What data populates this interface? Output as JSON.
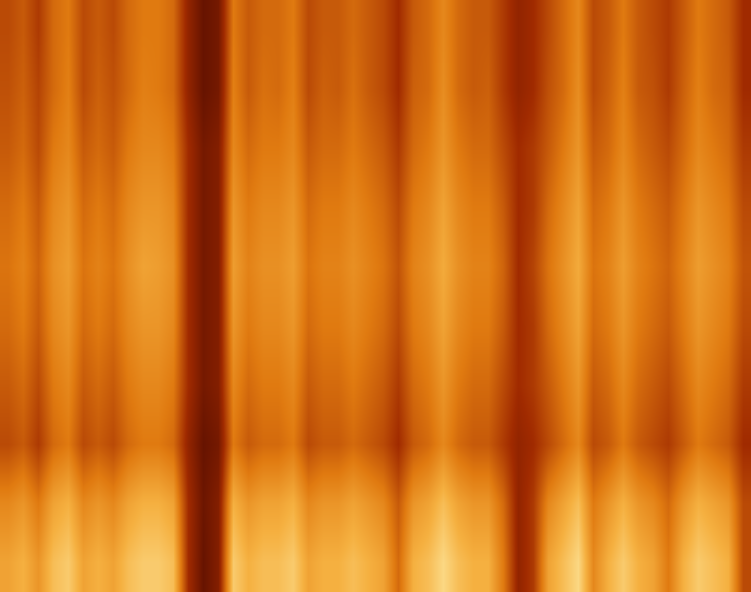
{
  "chart_data": {
    "type": "heatmap",
    "tick_labels": false,
    "zlim": [
      0,
      1
    ],
    "cells": [
      [
        0.4,
        0.45,
        0.35,
        0.5,
        0.55,
        0.4,
        0.45,
        0.4,
        0.5,
        0.55,
        0.55,
        0.5,
        0.25,
        0.1,
        0.15,
        0.55,
        0.45,
        0.5,
        0.5,
        0.55,
        0.4,
        0.45,
        0.45,
        0.5,
        0.45,
        0.4,
        0.3,
        0.45,
        0.5,
        0.6,
        0.5,
        0.45,
        0.45,
        0.35,
        0.25,
        0.3,
        0.4,
        0.5,
        0.6,
        0.4,
        0.45,
        0.55,
        0.45,
        0.4,
        0.35,
        0.45,
        0.55,
        0.5,
        0.45,
        0.3
      ],
      [
        0.42,
        0.47,
        0.38,
        0.5,
        0.57,
        0.4,
        0.47,
        0.42,
        0.5,
        0.57,
        0.55,
        0.5,
        0.25,
        0.1,
        0.15,
        0.57,
        0.45,
        0.52,
        0.5,
        0.57,
        0.4,
        0.47,
        0.45,
        0.52,
        0.45,
        0.4,
        0.3,
        0.47,
        0.5,
        0.62,
        0.5,
        0.45,
        0.47,
        0.35,
        0.25,
        0.3,
        0.42,
        0.5,
        0.62,
        0.4,
        0.47,
        0.57,
        0.45,
        0.42,
        0.35,
        0.47,
        0.57,
        0.5,
        0.47,
        0.3
      ],
      [
        0.45,
        0.5,
        0.4,
        0.55,
        0.6,
        0.45,
        0.5,
        0.45,
        0.55,
        0.6,
        0.6,
        0.55,
        0.3,
        0.15,
        0.2,
        0.6,
        0.5,
        0.55,
        0.55,
        0.6,
        0.45,
        0.5,
        0.5,
        0.55,
        0.5,
        0.45,
        0.35,
        0.5,
        0.55,
        0.65,
        0.55,
        0.5,
        0.5,
        0.4,
        0.3,
        0.35,
        0.45,
        0.55,
        0.65,
        0.45,
        0.5,
        0.6,
        0.5,
        0.45,
        0.4,
        0.5,
        0.6,
        0.55,
        0.5,
        0.35
      ],
      [
        0.5,
        0.55,
        0.45,
        0.6,
        0.65,
        0.5,
        0.55,
        0.5,
        0.6,
        0.65,
        0.65,
        0.6,
        0.3,
        0.15,
        0.2,
        0.65,
        0.55,
        0.6,
        0.6,
        0.65,
        0.5,
        0.55,
        0.55,
        0.6,
        0.55,
        0.5,
        0.4,
        0.55,
        0.6,
        0.7,
        0.6,
        0.55,
        0.55,
        0.45,
        0.3,
        0.35,
        0.5,
        0.6,
        0.7,
        0.5,
        0.55,
        0.65,
        0.55,
        0.5,
        0.45,
        0.55,
        0.65,
        0.6,
        0.55,
        0.4
      ],
      [
        0.53,
        0.58,
        0.48,
        0.63,
        0.68,
        0.53,
        0.58,
        0.53,
        0.63,
        0.7,
        0.68,
        0.63,
        0.3,
        0.15,
        0.2,
        0.68,
        0.58,
        0.63,
        0.63,
        0.68,
        0.53,
        0.58,
        0.58,
        0.63,
        0.58,
        0.53,
        0.43,
        0.58,
        0.63,
        0.73,
        0.63,
        0.58,
        0.58,
        0.48,
        0.3,
        0.38,
        0.53,
        0.63,
        0.73,
        0.53,
        0.58,
        0.68,
        0.58,
        0.53,
        0.48,
        0.58,
        0.68,
        0.63,
        0.58,
        0.43
      ],
      [
        0.5,
        0.55,
        0.45,
        0.6,
        0.65,
        0.5,
        0.55,
        0.5,
        0.6,
        0.65,
        0.65,
        0.6,
        0.3,
        0.15,
        0.2,
        0.65,
        0.55,
        0.6,
        0.6,
        0.65,
        0.5,
        0.55,
        0.55,
        0.6,
        0.55,
        0.5,
        0.4,
        0.55,
        0.6,
        0.7,
        0.6,
        0.55,
        0.55,
        0.45,
        0.3,
        0.35,
        0.5,
        0.6,
        0.7,
        0.5,
        0.55,
        0.65,
        0.55,
        0.5,
        0.45,
        0.55,
        0.65,
        0.6,
        0.55,
        0.4
      ],
      [
        0.45,
        0.5,
        0.4,
        0.55,
        0.6,
        0.45,
        0.5,
        0.45,
        0.55,
        0.6,
        0.6,
        0.55,
        0.3,
        0.15,
        0.2,
        0.6,
        0.5,
        0.55,
        0.55,
        0.6,
        0.45,
        0.5,
        0.5,
        0.55,
        0.5,
        0.45,
        0.35,
        0.5,
        0.55,
        0.65,
        0.55,
        0.5,
        0.5,
        0.4,
        0.3,
        0.35,
        0.45,
        0.55,
        0.65,
        0.45,
        0.5,
        0.6,
        0.5,
        0.45,
        0.4,
        0.5,
        0.6,
        0.55,
        0.5,
        0.35
      ],
      [
        0.4,
        0.45,
        0.35,
        0.5,
        0.55,
        0.4,
        0.45,
        0.4,
        0.5,
        0.55,
        0.55,
        0.5,
        0.25,
        0.1,
        0.15,
        0.55,
        0.45,
        0.5,
        0.5,
        0.55,
        0.4,
        0.45,
        0.45,
        0.5,
        0.45,
        0.4,
        0.3,
        0.45,
        0.5,
        0.6,
        0.5,
        0.45,
        0.45,
        0.35,
        0.25,
        0.3,
        0.4,
        0.5,
        0.6,
        0.4,
        0.45,
        0.55,
        0.45,
        0.4,
        0.35,
        0.45,
        0.55,
        0.5,
        0.45,
        0.3
      ],
      [
        0.6,
        0.65,
        0.55,
        0.7,
        0.75,
        0.6,
        0.65,
        0.6,
        0.7,
        0.75,
        0.75,
        0.7,
        0.3,
        0.12,
        0.2,
        0.75,
        0.65,
        0.7,
        0.7,
        0.75,
        0.6,
        0.65,
        0.65,
        0.7,
        0.65,
        0.6,
        0.45,
        0.65,
        0.7,
        0.8,
        0.7,
        0.65,
        0.65,
        0.5,
        0.25,
        0.35,
        0.6,
        0.7,
        0.8,
        0.55,
        0.65,
        0.75,
        0.65,
        0.6,
        0.5,
        0.65,
        0.75,
        0.7,
        0.65,
        0.4
      ],
      [
        0.7,
        0.75,
        0.65,
        0.8,
        0.85,
        0.7,
        0.75,
        0.7,
        0.8,
        0.85,
        0.85,
        0.8,
        0.3,
        0.1,
        0.2,
        0.85,
        0.75,
        0.8,
        0.8,
        0.85,
        0.7,
        0.75,
        0.75,
        0.8,
        0.75,
        0.7,
        0.5,
        0.75,
        0.8,
        0.9,
        0.8,
        0.75,
        0.75,
        0.55,
        0.25,
        0.35,
        0.7,
        0.8,
        0.9,
        0.6,
        0.75,
        0.85,
        0.75,
        0.7,
        0.55,
        0.75,
        0.85,
        0.8,
        0.75,
        0.4
      ]
    ]
  }
}
